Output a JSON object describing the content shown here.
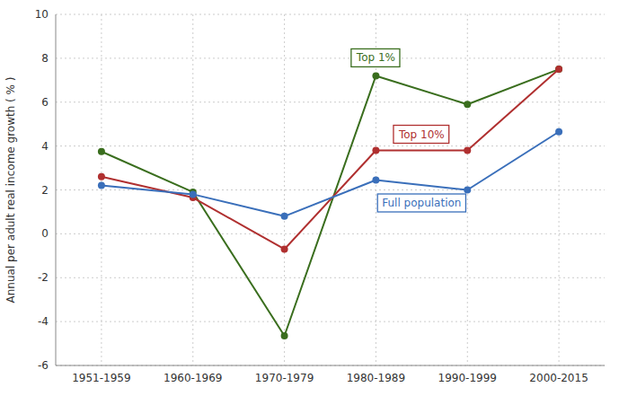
{
  "chart_data": {
    "type": "line",
    "categories": [
      "1951-1959",
      "1960-1969",
      "1970-1979",
      "1980-1989",
      "1990-1999",
      "2000-2015"
    ],
    "series": [
      {
        "name": "Top 1%",
        "color": "#3a6e1e",
        "values": [
          3.75,
          1.9,
          -4.65,
          7.2,
          5.9,
          7.5
        ]
      },
      {
        "name": "Top 10%",
        "color": "#b03030",
        "values": [
          2.6,
          1.65,
          -0.7,
          3.8,
          3.8,
          7.5
        ]
      },
      {
        "name": "Full population",
        "color": "#3a6fba",
        "values": [
          2.2,
          1.8,
          0.8,
          2.45,
          2.0,
          4.65
        ]
      }
    ],
    "ylabel": "Annual per adult real income growth ( % )",
    "ylim": [
      -6,
      10
    ],
    "yticks": [
      -6,
      -4,
      -2,
      0,
      2,
      4,
      6,
      8,
      10
    ],
    "grid": true,
    "marker": "circle"
  }
}
